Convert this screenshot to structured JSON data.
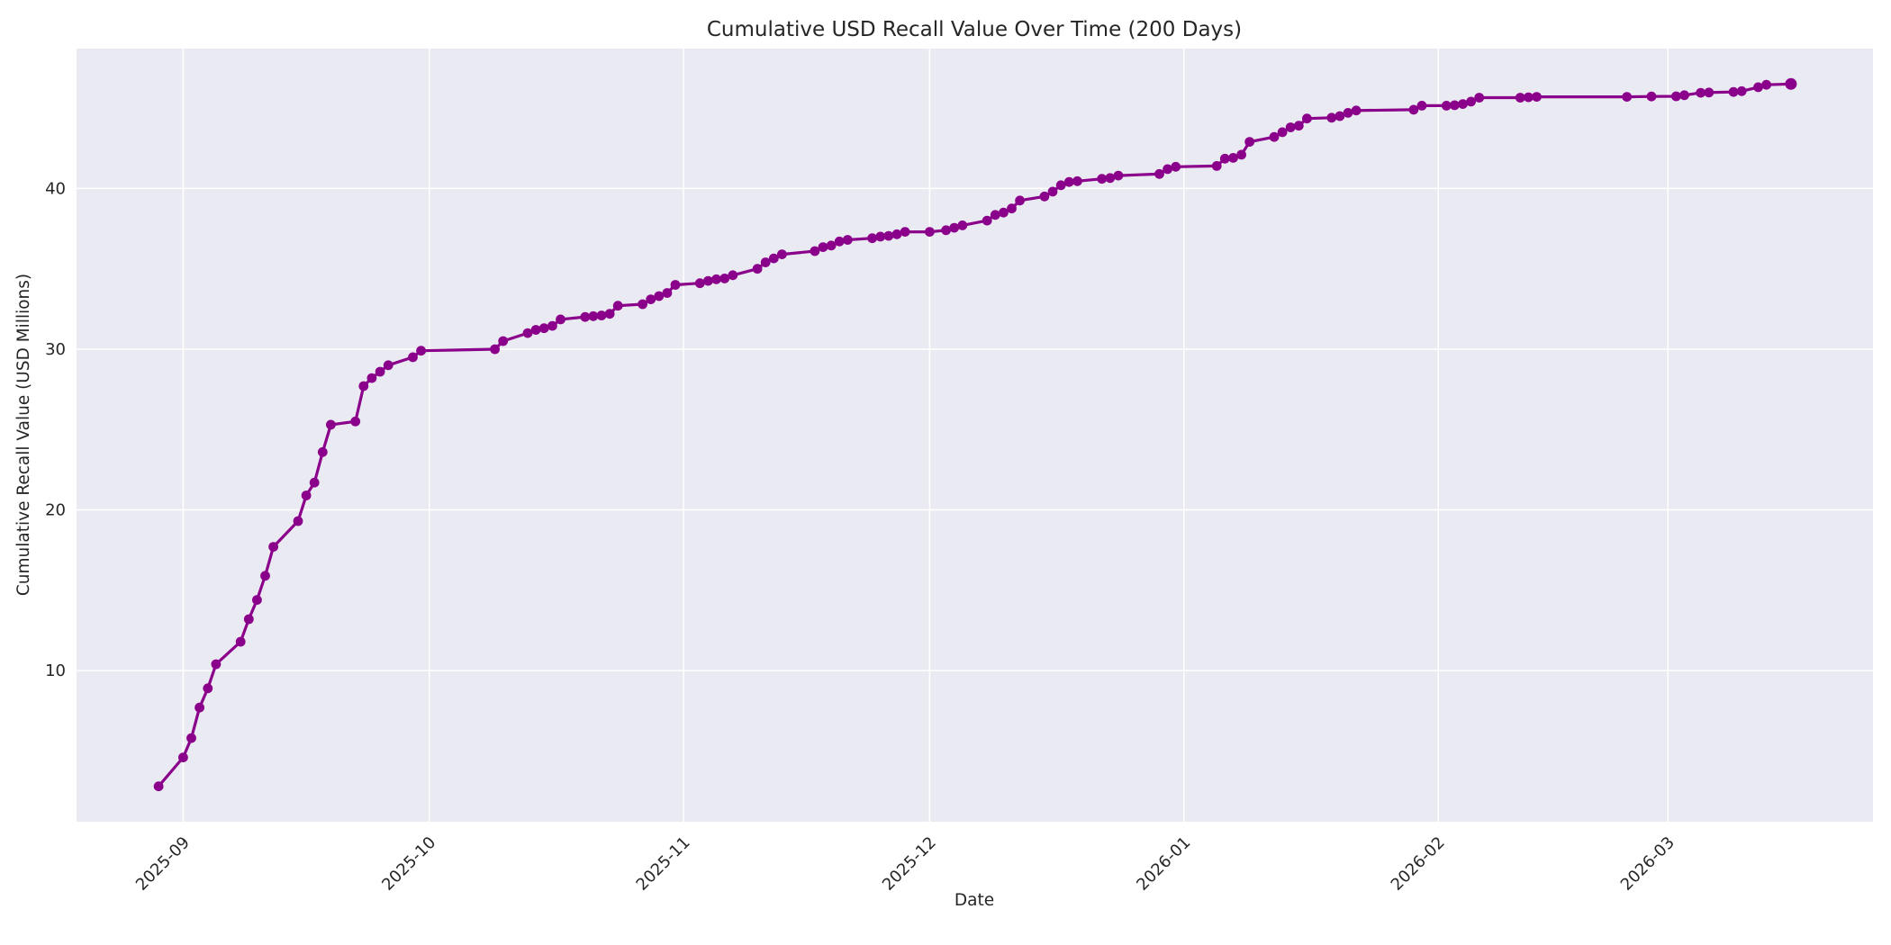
{
  "figure": {
    "background": "#ffffff",
    "plot_background": "#eaeaf2",
    "grid_color": "#ffffff",
    "text_color": "#262626",
    "line_color": "#8b008b"
  },
  "chart_data": {
    "type": "line",
    "title": "Cumulative USD Recall Value Over Time (200 Days)",
    "xlabel": "Date",
    "ylabel": "Cumulative Recall Value (USD Millions)",
    "grid": true,
    "legend_position": "none",
    "marker": "circle",
    "x_start_date": "2025-08-29",
    "x_end_date": "2026-03-16",
    "xlim_days": [
      -10,
      209
    ],
    "ylim": [
      0.6,
      48.7
    ],
    "y_ticks": [
      10,
      20,
      30,
      40
    ],
    "x_tick_dates": [
      "2025-09-01",
      "2025-10-01",
      "2025-11-01",
      "2025-12-01",
      "2026-01-01",
      "2026-02-01",
      "2026-03-01"
    ],
    "x_tick_labels": [
      "2025-09",
      "2025-10",
      "2025-11",
      "2025-12",
      "2026-01",
      "2026-02",
      "2026-03"
    ],
    "series": [
      {
        "name": "Cumulative Recall Value (USD Millions)",
        "points": [
          [
            "2025-08-29",
            2.8
          ],
          [
            "2025-09-01",
            4.6
          ],
          [
            "2025-09-02",
            5.8
          ],
          [
            "2025-09-03",
            7.7
          ],
          [
            "2025-09-04",
            8.9
          ],
          [
            "2025-09-05",
            10.4
          ],
          [
            "2025-09-08",
            11.8
          ],
          [
            "2025-09-09",
            13.2
          ],
          [
            "2025-09-10",
            14.4
          ],
          [
            "2025-09-11",
            15.9
          ],
          [
            "2025-09-12",
            17.7
          ],
          [
            "2025-09-15",
            19.3
          ],
          [
            "2025-09-16",
            20.9
          ],
          [
            "2025-09-17",
            21.7
          ],
          [
            "2025-09-18",
            23.6
          ],
          [
            "2025-09-19",
            25.3
          ],
          [
            "2025-09-22",
            25.5
          ],
          [
            "2025-09-23",
            27.7
          ],
          [
            "2025-09-24",
            28.2
          ],
          [
            "2025-09-25",
            28.6
          ],
          [
            "2025-09-26",
            29.0
          ],
          [
            "2025-09-29",
            29.5
          ],
          [
            "2025-09-30",
            29.9
          ],
          [
            "2025-10-09",
            30.0
          ],
          [
            "2025-10-10",
            30.5
          ],
          [
            "2025-10-13",
            31.0
          ],
          [
            "2025-10-14",
            31.2
          ],
          [
            "2025-10-15",
            31.3
          ],
          [
            "2025-10-16",
            31.45
          ],
          [
            "2025-10-17",
            31.85
          ],
          [
            "2025-10-20",
            32.0
          ],
          [
            "2025-10-21",
            32.05
          ],
          [
            "2025-10-22",
            32.1
          ],
          [
            "2025-10-23",
            32.2
          ],
          [
            "2025-10-24",
            32.7
          ],
          [
            "2025-10-27",
            32.8
          ],
          [
            "2025-10-28",
            33.1
          ],
          [
            "2025-10-29",
            33.3
          ],
          [
            "2025-10-30",
            33.5
          ],
          [
            "2025-10-31",
            34.0
          ],
          [
            "2025-11-03",
            34.1
          ],
          [
            "2025-11-04",
            34.25
          ],
          [
            "2025-11-05",
            34.35
          ],
          [
            "2025-11-06",
            34.4
          ],
          [
            "2025-11-07",
            34.6
          ],
          [
            "2025-11-10",
            35.0
          ],
          [
            "2025-11-11",
            35.4
          ],
          [
            "2025-11-12",
            35.65
          ],
          [
            "2025-11-13",
            35.9
          ],
          [
            "2025-11-17",
            36.1
          ],
          [
            "2025-11-18",
            36.35
          ],
          [
            "2025-11-19",
            36.45
          ],
          [
            "2025-11-20",
            36.7
          ],
          [
            "2025-11-21",
            36.8
          ],
          [
            "2025-11-24",
            36.9
          ],
          [
            "2025-11-25",
            37.0
          ],
          [
            "2025-11-26",
            37.05
          ],
          [
            "2025-11-27",
            37.15
          ],
          [
            "2025-11-28",
            37.3
          ],
          [
            "2025-12-01",
            37.3
          ],
          [
            "2025-12-03",
            37.4
          ],
          [
            "2025-12-04",
            37.55
          ],
          [
            "2025-12-05",
            37.7
          ],
          [
            "2025-12-08",
            38.0
          ],
          [
            "2025-12-09",
            38.35
          ],
          [
            "2025-12-10",
            38.5
          ],
          [
            "2025-12-11",
            38.75
          ],
          [
            "2025-12-12",
            39.25
          ],
          [
            "2025-12-15",
            39.5
          ],
          [
            "2025-12-16",
            39.8
          ],
          [
            "2025-12-17",
            40.2
          ],
          [
            "2025-12-18",
            40.4
          ],
          [
            "2025-12-19",
            40.45
          ],
          [
            "2025-12-22",
            40.6
          ],
          [
            "2025-12-23",
            40.65
          ],
          [
            "2025-12-24",
            40.8
          ],
          [
            "2025-12-29",
            40.9
          ],
          [
            "2025-12-30",
            41.2
          ],
          [
            "2025-12-31",
            41.35
          ],
          [
            "2026-01-05",
            41.4
          ],
          [
            "2026-01-06",
            41.85
          ],
          [
            "2026-01-07",
            41.9
          ],
          [
            "2026-01-08",
            42.1
          ],
          [
            "2026-01-09",
            42.9
          ],
          [
            "2026-01-12",
            43.2
          ],
          [
            "2026-01-13",
            43.5
          ],
          [
            "2026-01-14",
            43.8
          ],
          [
            "2026-01-15",
            43.9
          ],
          [
            "2026-01-16",
            44.35
          ],
          [
            "2026-01-19",
            44.4
          ],
          [
            "2026-01-20",
            44.5
          ],
          [
            "2026-01-21",
            44.7
          ],
          [
            "2026-01-22",
            44.85
          ],
          [
            "2026-01-29",
            44.9
          ],
          [
            "2026-01-30",
            45.15
          ],
          [
            "2026-02-02",
            45.15
          ],
          [
            "2026-02-03",
            45.18
          ],
          [
            "2026-02-04",
            45.25
          ],
          [
            "2026-02-05",
            45.4
          ],
          [
            "2026-02-06",
            45.65
          ],
          [
            "2026-02-11",
            45.65
          ],
          [
            "2026-02-12",
            45.67
          ],
          [
            "2026-02-13",
            45.7
          ],
          [
            "2026-02-24",
            45.7
          ],
          [
            "2026-02-27",
            45.72
          ],
          [
            "2026-03-02",
            45.73
          ],
          [
            "2026-03-03",
            45.8
          ],
          [
            "2026-03-05",
            45.95
          ],
          [
            "2026-03-06",
            45.97
          ],
          [
            "2026-03-09",
            46.0
          ],
          [
            "2026-03-10",
            46.05
          ],
          [
            "2026-03-12",
            46.3
          ],
          [
            "2026-03-13",
            46.45
          ],
          [
            "2026-03-16",
            46.5
          ]
        ]
      }
    ]
  }
}
